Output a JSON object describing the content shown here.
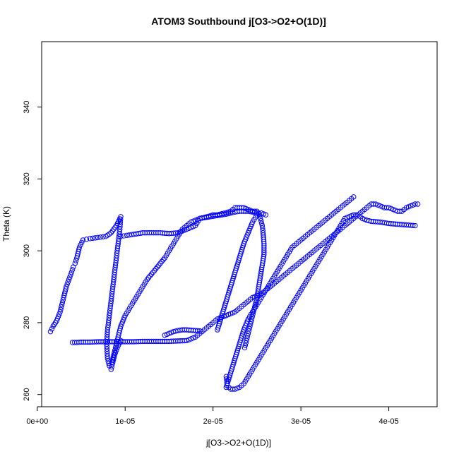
{
  "chart_data": {
    "type": "scatter",
    "title": "ATOM3 Southbound j[O3->O2+O(1D)]",
    "xlabel": "j[O3->O2+O(1D)]",
    "ylabel": "Theta (K)",
    "xlim": [
      5e-07,
      4.55e-05
    ],
    "ylim": [
      256.6,
      358.2
    ],
    "grid": false,
    "legend": "none",
    "x_ticks": [
      0,
      1e-05,
      2e-05,
      3e-05,
      4e-05
    ],
    "x_tick_labels": [
      "0e+00",
      "1e-05",
      "2e-05",
      "3e-05",
      "4e-05"
    ],
    "y_ticks": [
      260,
      280,
      300,
      320,
      340
    ],
    "y_tick_labels": [
      "260",
      "280",
      "300",
      "320",
      "340"
    ],
    "marker": "open-circle",
    "color": "#0000ff",
    "series": [
      {
        "comment_free_path": true,
        "x": [
          1.5e-06,
          1.8e-06,
          2.2e-06,
          2.6e-06,
          3e-06,
          3.3e-06,
          3.6e-06,
          3.9e-06,
          4.1e-06,
          4.3e-06,
          4.5e-06,
          4.8e-06,
          5.2e-06,
          5.6e-06,
          6e-06,
          6.6e-06,
          7.2e-06,
          7.8e-06,
          8.4e-06,
          9e-06,
          9.5e-06,
          9.4e-06,
          9.2e-06,
          9e-06,
          8.8e-06,
          8.6e-06,
          8.4e-06,
          8.2e-06,
          8e-06,
          7.9e-06,
          8e-06,
          8.2e-06,
          8.4e-06,
          8.6e-06,
          8.8e-06,
          9.1e-06,
          9.5e-06
        ],
        "y": [
          277.5,
          279,
          280.5,
          283,
          287,
          290,
          292,
          294,
          295.5,
          296.5,
          298,
          301,
          303,
          303.2,
          303.4,
          303.6,
          303.8,
          304,
          305,
          307,
          309.5,
          306,
          302,
          298,
          294,
          290,
          286,
          282,
          278,
          274,
          270,
          268,
          267,
          269,
          271,
          273,
          275
        ]
      },
      {
        "x": [
          9.5e-06,
          1.02e-05,
          1.1e-05,
          1.2e-05,
          1.3e-05,
          1.4e-05,
          1.5e-05,
          1.6e-05,
          1.7e-05,
          1.8e-05,
          1.85e-05,
          1.9e-05,
          1.95e-05,
          2e-05,
          2.05e-05,
          2.1e-05,
          2.15e-05,
          2.2e-05,
          2.25e-05,
          2.3e-05,
          2.35e-05,
          2.4e-05,
          2.45e-05,
          2.5e-05,
          2.52e-05,
          2.54e-05,
          2.56e-05,
          2.57e-05,
          2.58e-05,
          2.58e-05,
          2.56e-05,
          2.54e-05,
          2.52e-05,
          2.5e-05,
          2.48e-05,
          2.46e-05,
          2.44e-05,
          2.42e-05,
          2.4e-05,
          2.38e-05,
          2.36e-05
        ],
        "y": [
          304,
          304.3,
          304.6,
          305,
          305,
          305,
          304.8,
          305,
          306,
          307,
          309,
          309.3,
          309.6,
          310,
          310,
          310.3,
          310.6,
          311,
          312,
          312,
          312,
          311.5,
          311,
          311,
          310.5,
          309,
          307,
          305,
          302,
          299,
          296,
          293,
          290,
          287,
          285,
          283,
          281,
          279,
          277,
          275,
          273
        ]
      },
      {
        "x": [
          8.5e-06,
          8.7e-06,
          8.9e-06,
          9.2e-06,
          9.5e-06,
          1e-05,
          1.05e-05,
          1.1e-05,
          1.15e-05,
          1.2e-05,
          1.25e-05,
          1.3e-05,
          1.35e-05,
          1.4e-05,
          1.45e-05,
          1.5e-05,
          1.55e-05,
          1.6e-05,
          1.65e-05,
          1.7e-05,
          1.75e-05,
          1.8e-05,
          1.85e-05,
          1.9e-05,
          1.95e-05,
          2e-05,
          2.05e-05,
          2.1e-05,
          2.15e-05,
          2.2e-05,
          2.25e-05,
          2.3e-05,
          2.35e-05,
          2.4e-05,
          2.45e-05,
          2.5e-05
        ],
        "y": [
          269,
          271,
          273,
          276,
          279,
          282,
          284,
          286,
          288,
          290,
          292,
          293.5,
          295,
          296.5,
          298,
          300,
          302,
          304,
          306,
          307,
          308,
          308.5,
          309,
          309.2,
          309.4,
          309.6,
          309.8,
          310,
          310.2,
          310.5,
          310.8,
          311,
          311,
          311,
          310.8,
          310.5
        ]
      },
      {
        "x": [
          4e-06,
          4.5e-06,
          5e-06,
          6e-06,
          7e-06,
          8e-06,
          9e-06,
          1e-05,
          1.1e-05,
          1.2e-05,
          1.3e-05,
          1.4e-05,
          1.5e-05,
          1.6e-05,
          1.7e-05,
          1.8e-05,
          1.85e-05,
          1.9e-05,
          1.95e-05,
          2e-05,
          2.05e-05,
          2.1e-05,
          2.15e-05,
          2.2e-05,
          2.25e-05,
          2.3e-05,
          2.35e-05,
          2.4e-05,
          2.45e-05,
          2.5e-05,
          2.55e-05,
          2.6e-05,
          2.65e-05,
          2.7e-05,
          2.75e-05,
          2.8e-05,
          2.85e-05,
          2.9e-05,
          2.95e-05,
          3e-05,
          3.05e-05,
          3.1e-05,
          3.15e-05,
          3.2e-05,
          3.25e-05,
          3.3e-05,
          3.35e-05,
          3.4e-05,
          3.45e-05,
          3.5e-05,
          3.55e-05,
          3.6e-05,
          3.65e-05,
          3.7e-05,
          3.75e-05,
          3.8e-05,
          3.85e-05,
          3.9e-05,
          3.95e-05,
          4e-05,
          4.05e-05,
          4.1e-05,
          4.15e-05,
          4.2e-05,
          4.25e-05,
          4.3e-05,
          4.33e-05
        ],
        "y": [
          274.5,
          274.5,
          274.6,
          274.6,
          274.7,
          274.7,
          274.7,
          274.7,
          274.7,
          274.8,
          274.8,
          274.8,
          274.8,
          274.9,
          275,
          276,
          277,
          278,
          279,
          280,
          281,
          281.5,
          282,
          282.5,
          283,
          284,
          285,
          286,
          287,
          287.5,
          288,
          289,
          290,
          291,
          292,
          293,
          294,
          295,
          296,
          297,
          298,
          299,
          300,
          301,
          302,
          303,
          304,
          305,
          306,
          307,
          308,
          309,
          310,
          311,
          312,
          313,
          313,
          312.5,
          312,
          312,
          311.5,
          311,
          311,
          312,
          312.5,
          313,
          313
        ]
      },
      {
        "x": [
          4.3e-05,
          4.2e-05,
          4.1e-05,
          4e-05,
          3.9e-05,
          3.8e-05,
          3.75e-05,
          3.7e-05,
          3.65e-05,
          3.6e-05,
          3.55e-05,
          3.5e-05,
          3.45e-05,
          3.4e-05,
          3.35e-05,
          3.3e-05,
          3.25e-05,
          3.2e-05,
          3.15e-05,
          3.1e-05,
          3.05e-05,
          3e-05,
          2.95e-05,
          2.9e-05,
          2.85e-05,
          2.8e-05,
          2.75e-05,
          2.7e-05,
          2.65e-05,
          2.6e-05,
          2.55e-05,
          2.5e-05,
          2.45e-05,
          2.4e-05,
          2.35e-05,
          2.3e-05,
          2.25e-05,
          2.2e-05,
          2.18e-05,
          2.16e-05,
          2.15e-05
        ],
        "y": [
          307,
          307.2,
          307.4,
          307.6,
          308,
          308.2,
          308.5,
          309,
          310,
          310,
          309.5,
          309,
          307,
          305,
          303,
          301,
          299,
          297,
          295,
          293,
          291,
          289,
          287,
          285,
          283,
          281,
          279,
          277,
          275,
          273,
          271,
          269,
          267,
          265,
          263,
          262,
          261.5,
          261.5,
          262,
          263,
          265
        ]
      },
      {
        "x": [
          2.15e-05,
          2.2e-05,
          2.25e-05,
          2.3e-05,
          2.35e-05,
          2.4e-05,
          2.45e-05,
          2.5e-05,
          2.55e-05,
          2.6e-05,
          2.65e-05,
          2.7e-05,
          2.75e-05,
          2.8e-05,
          2.85e-05,
          2.9e-05,
          2.95e-05,
          3e-05,
          3.05e-05,
          3.1e-05,
          3.15e-05,
          3.2e-05,
          3.25e-05,
          3.3e-05,
          3.35e-05,
          3.4e-05,
          3.45e-05,
          3.5e-05,
          3.55e-05,
          3.6e-05
        ],
        "y": [
          262,
          266,
          270,
          274,
          278,
          281,
          283,
          285,
          287,
          289,
          291,
          293,
          295,
          297,
          299,
          301,
          302,
          303,
          304,
          305,
          306,
          307,
          308,
          309,
          310,
          311,
          312,
          313,
          314,
          315
        ]
      },
      {
        "x": [
          2.05e-05,
          2.1e-05,
          2.15e-05,
          2.2e-05,
          2.25e-05,
          2.3e-05,
          2.35e-05,
          2.4e-05,
          2.45e-05,
          2.5e-05,
          2.55e-05,
          2.6e-05
        ],
        "y": [
          278,
          282,
          286,
          290,
          294,
          298,
          302,
          305,
          308,
          310,
          310.5,
          310
        ]
      },
      {
        "x": [
          1.45e-05,
          1.5e-05,
          1.55e-05,
          1.6e-05,
          1.65e-05,
          1.7e-05,
          1.75e-05,
          1.8e-05,
          1.85e-05
        ],
        "y": [
          276.5,
          277,
          277.5,
          277.8,
          278,
          278,
          277.9,
          277.8,
          277.7
        ]
      }
    ]
  }
}
